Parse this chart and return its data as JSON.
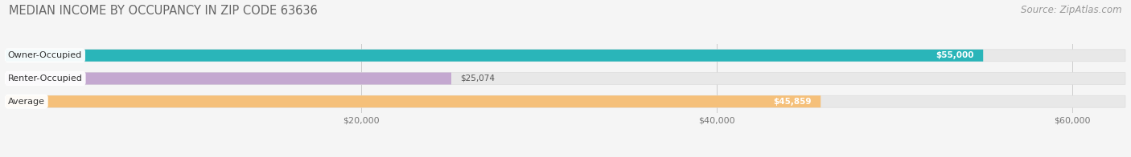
{
  "title": "MEDIAN INCOME BY OCCUPANCY IN ZIP CODE 63636",
  "source": "Source: ZipAtlas.com",
  "categories": [
    "Owner-Occupied",
    "Renter-Occupied",
    "Average"
  ],
  "values": [
    55000,
    25074,
    45859
  ],
  "bar_colors": [
    "#2ab5b9",
    "#c4a8d0",
    "#f5c07a"
  ],
  "value_labels": [
    "$55,000",
    "$25,074",
    "$45,859"
  ],
  "xlim_max": 63000,
  "xticks": [
    20000,
    40000,
    60000
  ],
  "xtick_labels": [
    "$20,000",
    "$40,000",
    "$60,000"
  ],
  "bar_height": 0.52,
  "bg_bar_color": "#e8e8e8",
  "background_color": "#f5f5f5",
  "title_fontsize": 10.5,
  "source_fontsize": 8.5,
  "bar_label_fontsize": 8,
  "value_label_fontsize": 7.5,
  "tick_fontsize": 8
}
